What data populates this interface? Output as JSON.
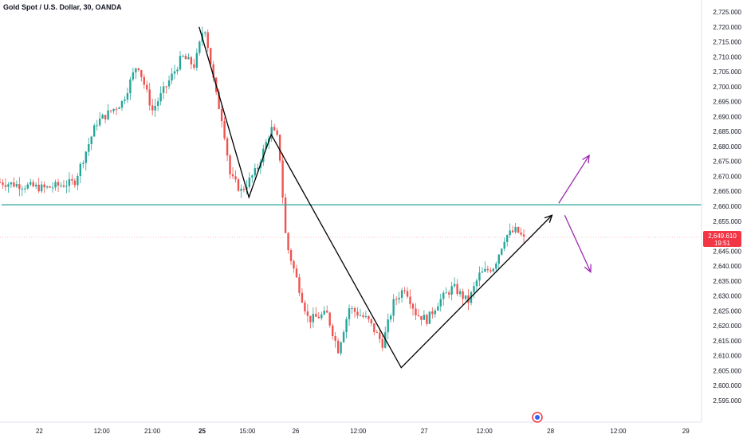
{
  "header": {
    "symbol_title": "Gold Spot / U.S. Dollar, 30, OANDA"
  },
  "colors": {
    "up": "#26a69a",
    "down": "#ef5350",
    "level_line": "#26a69a",
    "drawing": "#000000",
    "projection": "#9c27b0",
    "badge": "#f23645"
  },
  "price_badge": {
    "price": "2,649.610",
    "countdown": "19:51"
  },
  "chart_data": {
    "type": "candlestick",
    "title": "Gold Spot / U.S. Dollar, 30, OANDA",
    "ylim": [
      2595,
      2725
    ],
    "y_ticks": [
      "2,725.000",
      "2,720.000",
      "2,715.000",
      "2,710.000",
      "2,705.000",
      "2,700.000",
      "2,695.000",
      "2,690.000",
      "2,685.000",
      "2,680.000",
      "2,675.000",
      "2,670.000",
      "2,665.000",
      "2,660.000",
      "2,655.000",
      "2,650.000",
      "2,645.000",
      "2,640.000",
      "2,635.000",
      "2,630.000",
      "2,625.000",
      "2,620.000",
      "2,615.000",
      "2,610.000",
      "2,605.000",
      "2,600.000",
      "2,595.000"
    ],
    "y_tick_values": [
      2725,
      2720,
      2715,
      2710,
      2705,
      2700,
      2695,
      2690,
      2685,
      2680,
      2675,
      2670,
      2665,
      2660,
      2655,
      2650,
      2645,
      2640,
      2635,
      2630,
      2625,
      2620,
      2615,
      2610,
      2605,
      2600,
      2595
    ],
    "x_ticks": [
      "22",
      "12:00",
      "21:00",
      "25",
      "15:00",
      "26",
      "12:00",
      "27",
      "12:00",
      "28",
      "12:00",
      "29"
    ],
    "x_tick_positions": [
      0.053,
      0.137,
      0.205,
      0.272,
      0.333,
      0.398,
      0.482,
      0.571,
      0.652,
      0.741,
      0.832,
      0.923
    ],
    "x_tick_bold": [
      false,
      false,
      false,
      true,
      false,
      false,
      false,
      false,
      false,
      false,
      false,
      false
    ],
    "horizontal_level": 2660.5,
    "current_price": 2649.61,
    "anchors": [
      {
        "t": 0.0,
        "p": 2668
      },
      {
        "t": 0.06,
        "p": 2666
      },
      {
        "t": 0.1,
        "p": 2668
      },
      {
        "t": 0.13,
        "p": 2688
      },
      {
        "t": 0.165,
        "p": 2695
      },
      {
        "t": 0.185,
        "p": 2708
      },
      {
        "t": 0.205,
        "p": 2692
      },
      {
        "t": 0.23,
        "p": 2703
      },
      {
        "t": 0.245,
        "p": 2710
      },
      {
        "t": 0.262,
        "p": 2707
      },
      {
        "t": 0.275,
        "p": 2721
      },
      {
        "t": 0.29,
        "p": 2698
      },
      {
        "t": 0.3,
        "p": 2688
      },
      {
        "t": 0.31,
        "p": 2670
      },
      {
        "t": 0.325,
        "p": 2665
      },
      {
        "t": 0.345,
        "p": 2672
      },
      {
        "t": 0.365,
        "p": 2686
      },
      {
        "t": 0.375,
        "p": 2682
      },
      {
        "t": 0.385,
        "p": 2648
      },
      {
        "t": 0.4,
        "p": 2635
      },
      {
        "t": 0.415,
        "p": 2622
      },
      {
        "t": 0.44,
        "p": 2624
      },
      {
        "t": 0.455,
        "p": 2612
      },
      {
        "t": 0.47,
        "p": 2626
      },
      {
        "t": 0.495,
        "p": 2622
      },
      {
        "t": 0.515,
        "p": 2614
      },
      {
        "t": 0.53,
        "p": 2628
      },
      {
        "t": 0.545,
        "p": 2633
      },
      {
        "t": 0.56,
        "p": 2624
      },
      {
        "t": 0.575,
        "p": 2622
      },
      {
        "t": 0.59,
        "p": 2628
      },
      {
        "t": 0.61,
        "p": 2633
      },
      {
        "t": 0.63,
        "p": 2628
      },
      {
        "t": 0.645,
        "p": 2637
      },
      {
        "t": 0.665,
        "p": 2640
      },
      {
        "t": 0.68,
        "p": 2650
      },
      {
        "t": 0.695,
        "p": 2652
      },
      {
        "t": 0.705,
        "p": 2649
      }
    ],
    "drawings": {
      "zigzag": [
        {
          "t": 0.268,
          "p": 2720
        },
        {
          "t": 0.335,
          "p": 2663
        },
        {
          "t": 0.365,
          "p": 2684
        },
        {
          "t": 0.54,
          "p": 2606
        },
        {
          "t": 0.743,
          "p": 2657
        }
      ],
      "projection_up": [
        {
          "t": 0.752,
          "p": 2661
        },
        {
          "t": 0.793,
          "p": 2677
        }
      ],
      "projection_down": [
        {
          "t": 0.76,
          "p": 2657
        },
        {
          "t": 0.795,
          "p": 2638
        }
      ]
    }
  }
}
